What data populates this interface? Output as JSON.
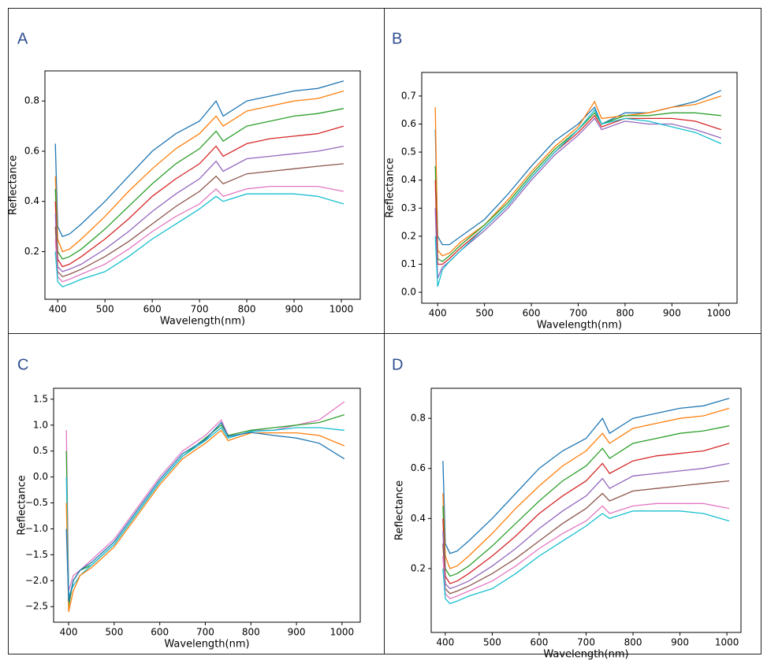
{
  "chart_data": [
    {
      "type": "line",
      "panel": "A",
      "x_label": "Wavelength(nm)",
      "y_label": "Reflectance",
      "x": [
        395,
        400,
        410,
        425,
        450,
        500,
        550,
        600,
        650,
        700,
        735,
        750,
        800,
        850,
        900,
        950,
        1005
      ],
      "xlim": [
        373,
        1040
      ],
      "xticks": [
        400,
        500,
        600,
        700,
        800,
        900,
        1000
      ],
      "ylim": [
        0.01,
        0.92
      ],
      "yticks": [
        0.2,
        0.4,
        0.6,
        0.8
      ],
      "series": [
        {
          "color": "#1f77b4",
          "values": [
            0.63,
            0.3,
            0.26,
            0.27,
            0.31,
            0.4,
            0.5,
            0.6,
            0.67,
            0.72,
            0.8,
            0.74,
            0.8,
            0.82,
            0.84,
            0.85,
            0.88
          ]
        },
        {
          "color": "#ff7f0e",
          "values": [
            0.5,
            0.25,
            0.2,
            0.21,
            0.25,
            0.34,
            0.44,
            0.53,
            0.61,
            0.67,
            0.74,
            0.7,
            0.76,
            0.78,
            0.8,
            0.81,
            0.84
          ]
        },
        {
          "color": "#2ca02c",
          "values": [
            0.45,
            0.2,
            0.17,
            0.18,
            0.21,
            0.29,
            0.38,
            0.47,
            0.55,
            0.61,
            0.68,
            0.64,
            0.7,
            0.72,
            0.74,
            0.75,
            0.77
          ]
        },
        {
          "color": "#d62728",
          "values": [
            0.4,
            0.17,
            0.14,
            0.15,
            0.18,
            0.25,
            0.33,
            0.42,
            0.49,
            0.55,
            0.62,
            0.58,
            0.63,
            0.65,
            0.66,
            0.67,
            0.7
          ]
        },
        {
          "color": "#9467bd",
          "values": [
            0.35,
            0.14,
            0.12,
            0.13,
            0.15,
            0.21,
            0.28,
            0.36,
            0.43,
            0.49,
            0.56,
            0.52,
            0.57,
            0.58,
            0.59,
            0.6,
            0.62
          ]
        },
        {
          "color": "#8c564b",
          "values": [
            0.3,
            0.12,
            0.1,
            0.11,
            0.13,
            0.18,
            0.24,
            0.31,
            0.38,
            0.44,
            0.5,
            0.47,
            0.51,
            0.52,
            0.53,
            0.54,
            0.55
          ]
        },
        {
          "color": "#e377c2",
          "values": [
            0.25,
            0.1,
            0.08,
            0.09,
            0.11,
            0.15,
            0.21,
            0.28,
            0.34,
            0.39,
            0.45,
            0.42,
            0.45,
            0.46,
            0.46,
            0.46,
            0.44
          ]
        },
        {
          "color": "#17becf",
          "values": [
            0.2,
            0.08,
            0.06,
            0.07,
            0.09,
            0.12,
            0.18,
            0.25,
            0.31,
            0.37,
            0.42,
            0.4,
            0.43,
            0.43,
            0.43,
            0.42,
            0.39
          ]
        }
      ]
    },
    {
      "type": "line",
      "panel": "B",
      "x_label": "Wavelength(nm)",
      "y_label": "Reflectance",
      "x": [
        395,
        400,
        410,
        425,
        450,
        500,
        550,
        600,
        650,
        700,
        735,
        750,
        800,
        850,
        900,
        950,
        1005
      ],
      "xlim": [
        366,
        1039
      ],
      "xticks": [
        400,
        500,
        600,
        700,
        800,
        900,
        1000
      ],
      "ylim": [
        -0.039,
        0.784
      ],
      "yticks": [
        {
          "value": 0,
          "label": "0.0"
        },
        0.1,
        0.2,
        0.3,
        0.4,
        0.5,
        0.6,
        0.7
      ],
      "series": [
        {
          "color": "#1f77b4",
          "values": [
            0.58,
            0.2,
            0.17,
            0.17,
            0.2,
            0.26,
            0.35,
            0.45,
            0.54,
            0.6,
            0.66,
            0.6,
            0.64,
            0.64,
            0.66,
            0.68,
            0.72
          ]
        },
        {
          "color": "#ff7f0e",
          "values": [
            0.66,
            0.15,
            0.13,
            0.14,
            0.18,
            0.24,
            0.33,
            0.43,
            0.52,
            0.59,
            0.68,
            0.62,
            0.63,
            0.64,
            0.66,
            0.67,
            0.7
          ]
        },
        {
          "color": "#2ca02c",
          "values": [
            0.45,
            0.12,
            0.11,
            0.13,
            0.17,
            0.24,
            0.32,
            0.42,
            0.51,
            0.58,
            0.64,
            0.6,
            0.63,
            0.63,
            0.64,
            0.64,
            0.63
          ]
        },
        {
          "color": "#d62728",
          "values": [
            0.4,
            0.1,
            0.1,
            0.12,
            0.16,
            0.23,
            0.31,
            0.41,
            0.5,
            0.57,
            0.63,
            0.59,
            0.62,
            0.62,
            0.62,
            0.61,
            0.58
          ]
        },
        {
          "color": "#9467bd",
          "values": [
            0.3,
            0.05,
            0.09,
            0.11,
            0.15,
            0.22,
            0.3,
            0.4,
            0.49,
            0.56,
            0.62,
            0.58,
            0.61,
            0.6,
            0.6,
            0.58,
            0.55
          ]
        },
        {
          "color": "#17becf",
          "values": [
            0.2,
            0.02,
            0.08,
            0.11,
            0.15,
            0.23,
            0.31,
            0.41,
            0.5,
            0.58,
            0.65,
            0.6,
            0.62,
            0.61,
            0.59,
            0.57,
            0.53
          ]
        }
      ]
    },
    {
      "type": "line",
      "panel": "C",
      "x_label": "Wavelength(nm)",
      "y_label": "Reflectance",
      "x": [
        395,
        400,
        410,
        425,
        450,
        500,
        550,
        600,
        650,
        700,
        735,
        750,
        800,
        850,
        900,
        950,
        1005
      ],
      "xlim": [
        367,
        1040
      ],
      "xticks": [
        400,
        500,
        600,
        700,
        800,
        900,
        1000
      ],
      "ylim": [
        -2.8,
        1.71
      ],
      "yticks": [
        {
          "value": 1.5,
          "label": "1.5"
        },
        {
          "value": 1,
          "label": "1.0"
        },
        {
          "value": 0.5,
          "label": "0.5"
        },
        {
          "value": 0,
          "label": "0.0"
        },
        {
          "value": -0.5,
          "label": "−0.5"
        },
        {
          "value": -1,
          "label": "−1.0"
        },
        {
          "value": -1.5,
          "label": "−1.5"
        },
        {
          "value": -2,
          "label": "−2.0"
        },
        {
          "value": -2.5,
          "label": "−2.5"
        }
      ],
      "series": [
        {
          "color": "#e377c2",
          "values": [
            0.9,
            -2.2,
            -1.9,
            -1.8,
            -1.6,
            -1.2,
            -0.6,
            0.0,
            0.5,
            0.8,
            1.1,
            0.8,
            0.9,
            0.9,
            1.0,
            1.1,
            1.45
          ]
        },
        {
          "color": "#2ca02c",
          "values": [
            0.5,
            -2.5,
            -2.0,
            -1.8,
            -1.7,
            -1.3,
            -0.7,
            -0.1,
            0.4,
            0.75,
            1.0,
            0.8,
            0.9,
            0.95,
            1.0,
            1.05,
            1.2
          ]
        },
        {
          "color": "#17becf",
          "values": [
            0.0,
            -2.3,
            -2.1,
            -1.9,
            -1.7,
            -1.3,
            -0.7,
            -0.1,
            0.4,
            0.7,
            0.95,
            0.75,
            0.88,
            0.9,
            0.95,
            0.95,
            0.9
          ]
        },
        {
          "color": "#ff7f0e",
          "values": [
            -0.5,
            -2.6,
            -2.2,
            -1.9,
            -1.75,
            -1.35,
            -0.75,
            -0.15,
            0.35,
            0.65,
            0.9,
            0.7,
            0.85,
            0.85,
            0.85,
            0.8,
            0.6
          ]
        },
        {
          "color": "#1f77b4",
          "values": [
            -1.0,
            -2.4,
            -2.0,
            -1.8,
            -1.65,
            -1.25,
            -0.65,
            -0.05,
            0.45,
            0.72,
            1.05,
            0.78,
            0.86,
            0.8,
            0.75,
            0.65,
            0.35
          ]
        }
      ]
    },
    {
      "type": "line",
      "panel": "D",
      "x_label": "Wavelength(nm)",
      "y_label": "Reflectance",
      "x": [
        395,
        400,
        410,
        425,
        450,
        500,
        550,
        600,
        650,
        700,
        735,
        750,
        800,
        850,
        900,
        950,
        1005
      ],
      "xlim": [
        370,
        1030
      ],
      "xticks": [
        400,
        500,
        600,
        700,
        800,
        900,
        1000
      ],
      "ylim": [
        -0.055,
        0.92
      ],
      "yticks": [
        0.2,
        0.4,
        0.6,
        0.8
      ],
      "series": [
        {
          "color": "#1f77b4",
          "values": [
            0.63,
            0.3,
            0.26,
            0.27,
            0.31,
            0.4,
            0.5,
            0.6,
            0.67,
            0.72,
            0.8,
            0.74,
            0.8,
            0.82,
            0.84,
            0.85,
            0.88
          ]
        },
        {
          "color": "#ff7f0e",
          "values": [
            0.5,
            0.25,
            0.2,
            0.21,
            0.25,
            0.34,
            0.44,
            0.53,
            0.61,
            0.67,
            0.74,
            0.7,
            0.76,
            0.78,
            0.8,
            0.81,
            0.84
          ]
        },
        {
          "color": "#2ca02c",
          "values": [
            0.45,
            0.2,
            0.17,
            0.18,
            0.21,
            0.29,
            0.38,
            0.47,
            0.55,
            0.61,
            0.68,
            0.64,
            0.7,
            0.72,
            0.74,
            0.75,
            0.77
          ]
        },
        {
          "color": "#d62728",
          "values": [
            0.4,
            0.17,
            0.14,
            0.15,
            0.18,
            0.25,
            0.33,
            0.42,
            0.49,
            0.55,
            0.62,
            0.58,
            0.63,
            0.65,
            0.66,
            0.67,
            0.7
          ]
        },
        {
          "color": "#9467bd",
          "values": [
            0.35,
            0.14,
            0.12,
            0.13,
            0.15,
            0.21,
            0.28,
            0.36,
            0.43,
            0.49,
            0.56,
            0.52,
            0.57,
            0.58,
            0.59,
            0.6,
            0.62
          ]
        },
        {
          "color": "#8c564b",
          "values": [
            0.3,
            0.12,
            0.1,
            0.11,
            0.13,
            0.18,
            0.24,
            0.31,
            0.38,
            0.44,
            0.5,
            0.47,
            0.51,
            0.52,
            0.53,
            0.54,
            0.55
          ]
        },
        {
          "color": "#e377c2",
          "values": [
            0.25,
            0.1,
            0.08,
            0.09,
            0.11,
            0.15,
            0.21,
            0.28,
            0.34,
            0.39,
            0.45,
            0.42,
            0.45,
            0.46,
            0.46,
            0.46,
            0.44
          ]
        },
        {
          "color": "#17becf",
          "values": [
            0.2,
            0.08,
            0.06,
            0.07,
            0.09,
            0.12,
            0.18,
            0.25,
            0.31,
            0.37,
            0.42,
            0.4,
            0.43,
            0.43,
            0.43,
            0.42,
            0.39
          ]
        }
      ]
    }
  ]
}
